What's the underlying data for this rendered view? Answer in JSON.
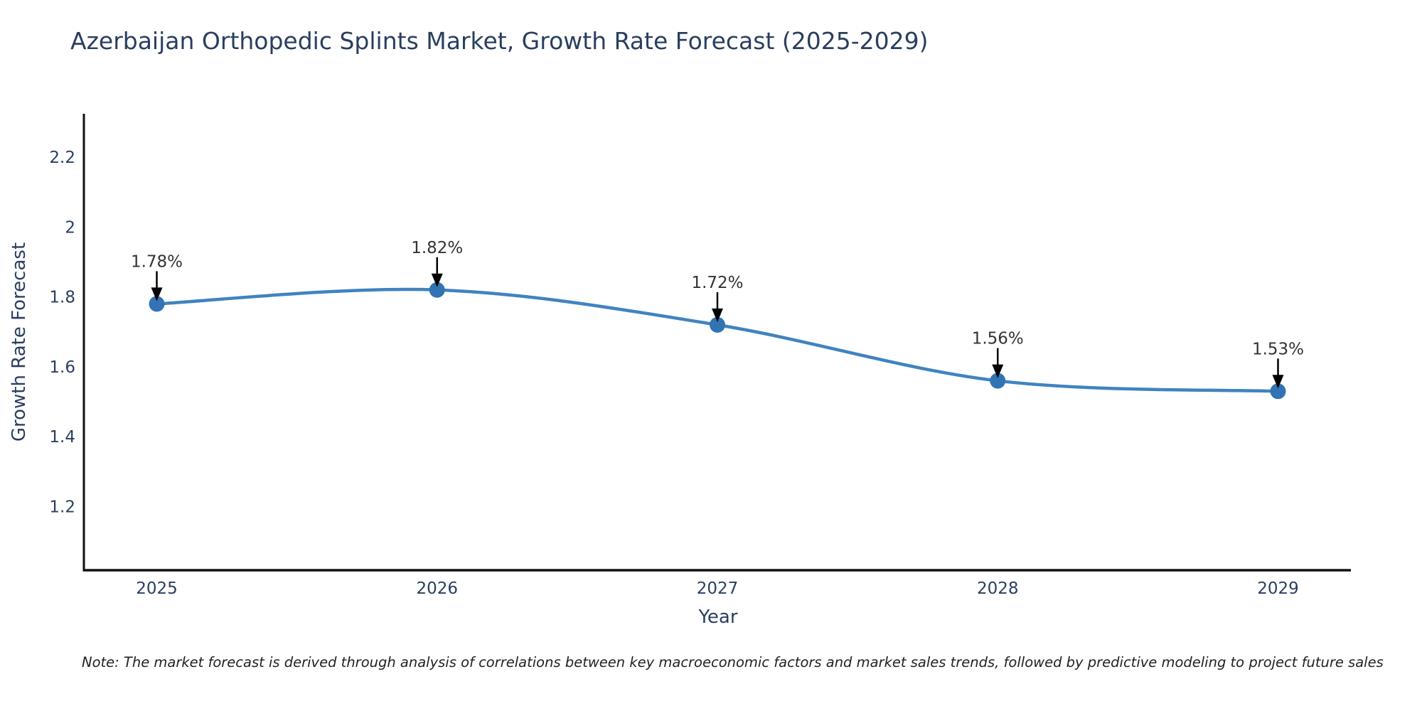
{
  "page": {
    "note": "Note: The market forecast is derived through analysis of correlations between key macroeconomic factors and market sales trends, followed by predictive modeling to project future sales"
  },
  "colors": {
    "line": "#4083c0",
    "marker": "#3273b3",
    "axis": "#111111",
    "title_text": "#2a3f5f",
    "tick_text": "#2a3f5f",
    "annotation_text": "#333333",
    "arrow": "#000000",
    "note_text": "#222222",
    "background": "#ffffff"
  },
  "chart_data": {
    "type": "line",
    "title": "Azerbaijan Orthopedic Splints Market, Growth Rate Forecast (2025-2029)",
    "x": [
      2025,
      2026,
      2027,
      2028,
      2029
    ],
    "series": [
      {
        "name": "Growth Rate Forecast",
        "values": [
          1.78,
          1.82,
          1.72,
          1.56,
          1.53
        ]
      }
    ],
    "point_labels": [
      "1.78%",
      "1.82%",
      "1.72%",
      "1.56%",
      "1.53%"
    ],
    "xlabel": "Year",
    "ylabel": "Growth Rate Forecast",
    "x_tick_labels": [
      "2025",
      "2026",
      "2027",
      "2028",
      "2029"
    ],
    "y_ticks": [
      1.2,
      1.4,
      1.6,
      1.8,
      2,
      2.2
    ],
    "y_tick_labels": [
      "1.2",
      "1.4",
      "1.6",
      "1.8",
      "2",
      "2.2"
    ],
    "xlim": [
      2024.74,
      2029.26
    ],
    "ylim": [
      1.018,
      2.324
    ],
    "grid": false,
    "legend": false,
    "line_shape": "spline",
    "markers": true
  }
}
